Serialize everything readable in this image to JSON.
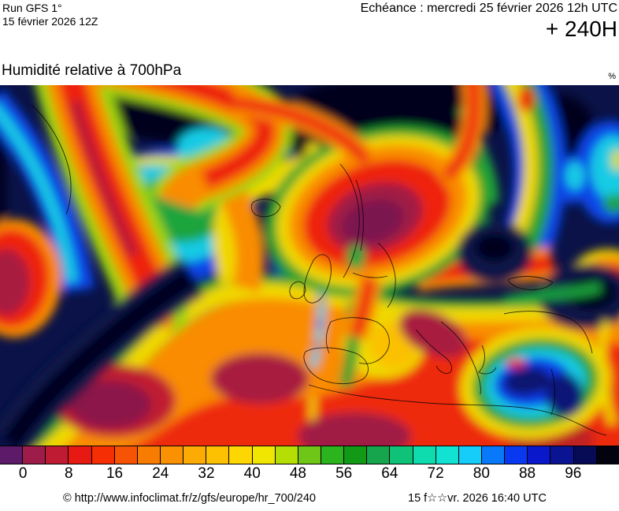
{
  "header": {
    "run_line1": "Run GFS 1°",
    "run_line2": "15 février 2026 12Z",
    "echeance": "Echéance : mercredi 25 février 2026 12h UTC",
    "forecast_hour": "+ 240H"
  },
  "title": "Humidité relative à 700hPa",
  "unit": "%",
  "colorbar": {
    "labels": [
      "0",
      "8",
      "16",
      "24",
      "32",
      "40",
      "48",
      "56",
      "64",
      "72",
      "80",
      "88",
      "96"
    ],
    "cell_colors": [
      "#5c1a68",
      "#9e1c4a",
      "#bf1c34",
      "#e61a12",
      "#f52e04",
      "#f75304",
      "#f87c02",
      "#f99102",
      "#fbab02",
      "#fdc102",
      "#fed602",
      "#f0e602",
      "#b4de04",
      "#70c616",
      "#2cb41e",
      "#129a16",
      "#16a44c",
      "#0fc278",
      "#0edcae",
      "#11e2d2",
      "#16ccf8",
      "#0879f8",
      "#0839f0",
      "#0a18cc",
      "#0a1392",
      "#070b56",
      "#02030e"
    ]
  },
  "chart_data": {
    "type": "heatmap",
    "title": "Humidité relative à 700hPa",
    "unit": "%",
    "legend_position": "bottom",
    "scale_step_per_cell": 4,
    "scale_tick_values": [
      0,
      8,
      16,
      24,
      32,
      40,
      48,
      56,
      64,
      72,
      80,
      88,
      96
    ],
    "scale_cell_colors": [
      "#5c1a68",
      "#9e1c4a",
      "#bf1c34",
      "#e61a12",
      "#f52e04",
      "#f75304",
      "#f87c02",
      "#f99102",
      "#fbab02",
      "#fdc102",
      "#fed602",
      "#f0e602",
      "#b4de04",
      "#70c616",
      "#2cb41e",
      "#129a16",
      "#16a44c",
      "#0fc278",
      "#0edcae",
      "#11e2d2",
      "#16ccf8",
      "#0879f8",
      "#0839f0",
      "#0a18cc",
      "#0a1392",
      "#070b56",
      "#02030e"
    ],
    "map_palette": {
      "very_dry_core": "#7c1450",
      "dry_red": "#ee2410",
      "orange": "#f98c02",
      "yellow": "#f0d802",
      "green": "#27a22e",
      "cyan": "#13cbe4",
      "blue": "#0a3ae8",
      "humid_navy_background": "#0a1247",
      "saturated_black": "#04061e"
    }
  },
  "footer": {
    "copyright": "© http://www.infoclimat.fr/z/gfs/europe/hr_700/240",
    "timestamp": "15 f☆☆vr. 2026 16:40 UTC"
  }
}
